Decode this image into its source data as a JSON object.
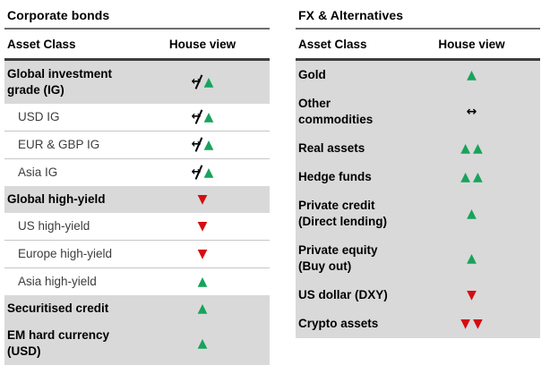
{
  "tables": [
    {
      "title": "Corporate bonds",
      "columns": [
        "Asset Class",
        "House view"
      ],
      "rows": [
        {
          "label": "Global investment grade (IG)",
          "emphasis": true,
          "indent": false,
          "view": [
            "changedNeutral",
            "up"
          ]
        },
        {
          "label": "USD IG",
          "emphasis": false,
          "indent": true,
          "view": [
            "changedNeutral",
            "up"
          ]
        },
        {
          "label": "EUR & GBP IG",
          "emphasis": false,
          "indent": true,
          "view": [
            "changedNeutral",
            "up"
          ]
        },
        {
          "label": "Asia IG",
          "emphasis": false,
          "indent": true,
          "view": [
            "changedNeutral",
            "up"
          ]
        },
        {
          "label": "Global high-yield",
          "emphasis": true,
          "indent": false,
          "view": [
            "down"
          ]
        },
        {
          "label": "US high-yield",
          "emphasis": false,
          "indent": true,
          "view": [
            "down"
          ]
        },
        {
          "label": "Europe high-yield",
          "emphasis": false,
          "indent": true,
          "view": [
            "down"
          ]
        },
        {
          "label": "Asia high-yield",
          "emphasis": false,
          "indent": true,
          "view": [
            "up"
          ]
        },
        {
          "label": "Securitised credit",
          "emphasis": true,
          "indent": false,
          "view": [
            "up"
          ]
        },
        {
          "label": "EM hard currency (USD)",
          "emphasis": true,
          "indent": false,
          "view": [
            "up"
          ]
        }
      ]
    },
    {
      "title": "FX & Alternatives",
      "columns": [
        "Asset Class",
        "House view"
      ],
      "rows": [
        {
          "label": "Gold",
          "emphasis": true,
          "indent": false,
          "view": [
            "up"
          ]
        },
        {
          "label": "Other commodities",
          "emphasis": true,
          "indent": false,
          "view": [
            "neutral"
          ]
        },
        {
          "label": "Real assets",
          "emphasis": true,
          "indent": false,
          "view": [
            "up",
            "up"
          ]
        },
        {
          "label": "Hedge funds",
          "emphasis": true,
          "indent": false,
          "view": [
            "up",
            "up"
          ]
        },
        {
          "label": "Private credit (Direct lending)",
          "emphasis": true,
          "indent": false,
          "view": [
            "up"
          ]
        },
        {
          "label": "Private equity (Buy out)",
          "emphasis": true,
          "indent": false,
          "view": [
            "up"
          ]
        },
        {
          "label": "US dollar (DXY)",
          "emphasis": true,
          "indent": false,
          "view": [
            "down"
          ]
        },
        {
          "label": "Crypto assets",
          "emphasis": true,
          "indent": false,
          "view": [
            "down",
            "down"
          ]
        }
      ]
    }
  ],
  "symbols": {
    "up": {
      "glyph": "▲",
      "color": "#18a35c",
      "name": "up-triangle-icon"
    },
    "down": {
      "glyph": "▼",
      "color": "#d40d12",
      "name": "down-triangle-icon"
    },
    "neutral": {
      "glyph": "↔",
      "color": "#000000",
      "name": "sideways-arrow-icon"
    },
    "changedNeutral": {
      "glyph": "↔",
      "color": "#000000",
      "name": "crossed-sideways-arrow-icon"
    }
  },
  "colors": {
    "row_highlight": "#d9d9d9",
    "positive": "#18a35c",
    "negative": "#d40d12"
  }
}
